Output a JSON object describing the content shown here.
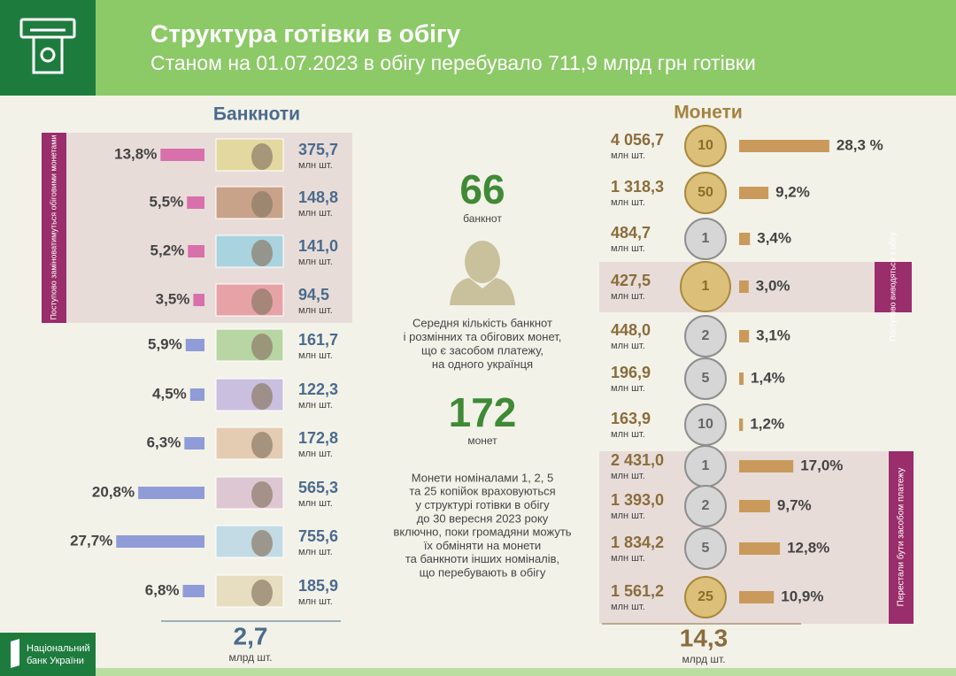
{
  "header": {
    "title": "Структура готівки в обігу",
    "subtitle": "Станом на 01.07.2023 в обігу перебувало 711,9 млрд грн готівки"
  },
  "banknotes": {
    "title": "Банкноти",
    "note": "Поступово заміноватимуться обіговими монетами",
    "shares": [
      13.8,
      5.5,
      5.2,
      3.5,
      5.9,
      4.5,
      6.3,
      20.8,
      27.7,
      6.8
    ],
    "value_labels": [
      "13,8%",
      "5,5%",
      "5,2%",
      "3,5%",
      "5,9%",
      "4,5%",
      "6,3%",
      "20,8%",
      "27,7%",
      "6,8%"
    ],
    "counts": [
      "375,7",
      "148,8",
      "141,0",
      "94,5",
      "161,7",
      "122,3",
      "172,8",
      "565,3",
      "755,6",
      "185,9"
    ],
    "unit": "млн шт.",
    "colors": [
      "#d870ac",
      "#8f9cd8"
    ],
    "note_colors": [
      "#e8dcd9",
      "#9a2d6b"
    ],
    "total": "2,7",
    "total_unit": "млрд шт."
  },
  "average": {
    "banknotes": "66",
    "banknotes_label": "банкнот",
    "text": [
      "Середня кількість банкнот",
      "і розмінних та обігових монет,",
      "що є засобом платежу,",
      "на одного українця"
    ],
    "coins": "172",
    "coins_label": "монет"
  },
  "footnote": [
    "Монети  номіналами 1, 2, 5",
    "та 25 копійок враховуються",
    "у структурі готівки в обігу",
    "до 30 вересня 2023 року",
    "включно, поки громадяни можуть",
    "їх обміняти на монети",
    "та банкноти інших номіналів,",
    "що перебувають в обігу"
  ],
  "coins": {
    "title": "Монети",
    "denominations": [
      "10",
      "50",
      "1",
      "1",
      "2",
      "5",
      "10",
      "1",
      "2",
      "5",
      "25"
    ],
    "counts": [
      "4 056,7",
      "1 318,3",
      "484,7",
      "427,5",
      "448,0",
      "196,9",
      "163,9",
      "2 431,0",
      "1 393,0",
      "1 834,2",
      "1 561,2"
    ],
    "unit": "млн шт.",
    "shares": [
      28.3,
      9.2,
      3.4,
      3.0,
      3.1,
      1.4,
      1.2,
      17.0,
      9.7,
      12.8,
      10.9
    ],
    "value_labels": [
      "28,3 %",
      "9,2%",
      "3,4%",
      "3,0%",
      "3,1%",
      "1,4%",
      "1,2%",
      "17,0%",
      "9,7%",
      "12,8%",
      "10,9%"
    ],
    "color": "#c99a5c",
    "notes": [
      "Поступово виводяться з обігу",
      "Перестали бути засобом платежу"
    ],
    "total": "14,3",
    "total_unit": "млрд шт."
  },
  "logo": [
    "Національний",
    "банк України"
  ]
}
